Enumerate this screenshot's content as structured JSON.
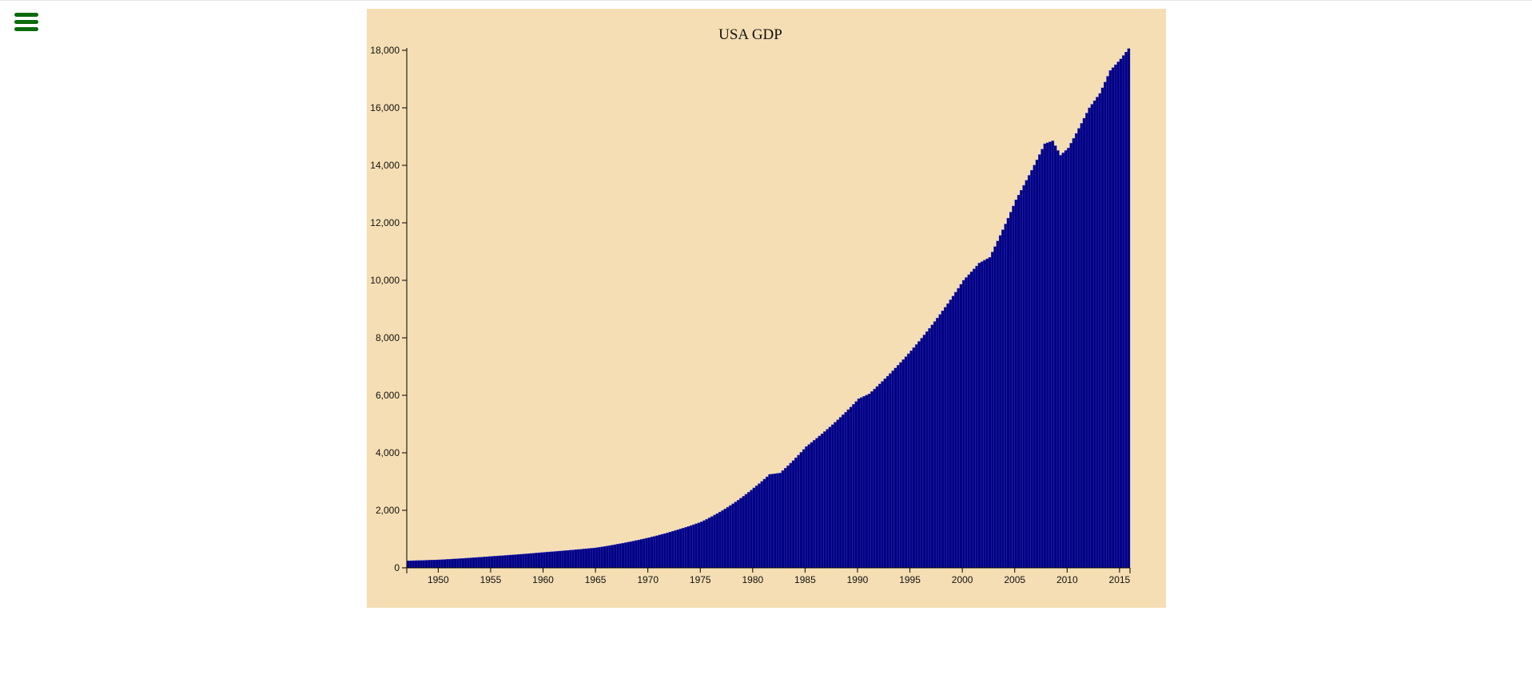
{
  "menu": {
    "icon": "hamburger-menu-icon",
    "color": "#0b6b0b"
  },
  "chart_data": {
    "type": "bar",
    "title": "USA GDP",
    "xlabel": "",
    "ylabel": "",
    "background": "#f5deb3",
    "bar_color": "#000080",
    "ylim": [
      0,
      18000
    ],
    "y_ticks": [
      "0",
      "2,000",
      "4,000",
      "6,000",
      "8,000",
      "10,000",
      "12,000",
      "14,000",
      "16,000",
      "18,000"
    ],
    "x_ticks": [
      "1950",
      "1955",
      "1960",
      "1965",
      "1970",
      "1975",
      "1980",
      "1985",
      "1990",
      "1995",
      "2000",
      "2005",
      "2010",
      "2015"
    ],
    "x_range": [
      "1947",
      "2015.75"
    ],
    "frequency": "quarterly",
    "anchor_points": [
      {
        "x": 1947.0,
        "y": 243
      },
      {
        "x": 1950.0,
        "y": 280
      },
      {
        "x": 1955.0,
        "y": 400
      },
      {
        "x": 1960.0,
        "y": 540
      },
      {
        "x": 1965.0,
        "y": 700
      },
      {
        "x": 1970.0,
        "y": 1050
      },
      {
        "x": 1975.0,
        "y": 1600
      },
      {
        "x": 1980.0,
        "y": 2780
      },
      {
        "x": 1981.5,
        "y": 3250
      },
      {
        "x": 1982.5,
        "y": 3300
      },
      {
        "x": 1985.0,
        "y": 4220
      },
      {
        "x": 1990.0,
        "y": 5880
      },
      {
        "x": 1991.0,
        "y": 6050
      },
      {
        "x": 1995.0,
        "y": 7550
      },
      {
        "x": 2000.0,
        "y": 10000
      },
      {
        "x": 2001.5,
        "y": 10600
      },
      {
        "x": 2002.5,
        "y": 10800
      },
      {
        "x": 2005.0,
        "y": 12800
      },
      {
        "x": 2007.75,
        "y": 14750
      },
      {
        "x": 2008.5,
        "y": 14850
      },
      {
        "x": 2009.25,
        "y": 14350
      },
      {
        "x": 2010.0,
        "y": 14600
      },
      {
        "x": 2012.0,
        "y": 16000
      },
      {
        "x": 2013.0,
        "y": 16500
      },
      {
        "x": 2014.0,
        "y": 17300
      },
      {
        "x": 2015.0,
        "y": 17700
      },
      {
        "x": 2015.75,
        "y": 18060
      }
    ]
  }
}
